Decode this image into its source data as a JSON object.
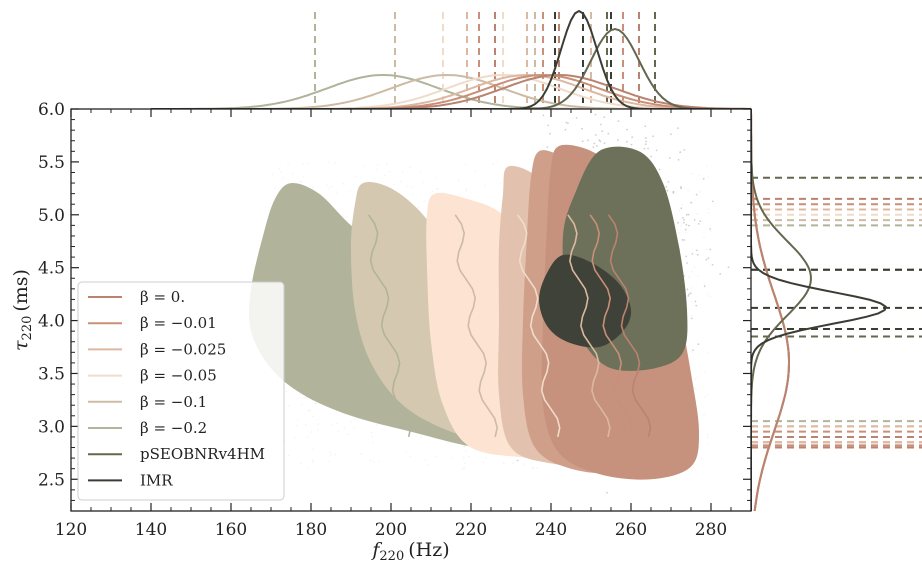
{
  "chart_data": {
    "type": "scatter",
    "title": "",
    "xlabel": {
      "base": "f",
      "sub": "220",
      "unit": "(Hz)"
    },
    "ylabel": {
      "base": "τ",
      "sub": "220",
      "unit": "(ms)"
    },
    "xlim": [
      120,
      290
    ],
    "ylim": [
      2.2,
      6.0
    ],
    "xticks": [
      "120",
      "140",
      "160",
      "180",
      "200",
      "220",
      "240",
      "260",
      "280"
    ],
    "yticks": [
      "2.5",
      "3.0",
      "3.5",
      "4.0",
      "4.5",
      "5.0",
      "5.5",
      "6.0"
    ],
    "legend_position": "lower-left",
    "series": [
      {
        "name": "β = −0.2",
        "color": "#b1b39a",
        "fill": "#b1b39a",
        "region": [
          [
            175,
            5.3
          ],
          [
            182,
            5.2
          ],
          [
            190,
            4.9
          ],
          [
            200,
            4.6
          ],
          [
            210,
            4.2
          ],
          [
            220,
            3.8
          ],
          [
            230,
            3.4
          ],
          [
            235,
            3.1
          ],
          [
            232,
            2.85
          ],
          [
            222,
            2.8
          ],
          [
            205,
            2.95
          ],
          [
            190,
            3.1
          ],
          [
            178,
            3.3
          ],
          [
            170,
            3.55
          ],
          [
            165,
            3.9
          ],
          [
            165,
            4.3
          ],
          [
            168,
            4.8
          ],
          [
            171,
            5.15
          ]
        ],
        "x_marginal_peak": 198,
        "x_quantiles": [
          181,
          201,
          219
        ],
        "y_quantiles": [
          2.85,
          3.05,
          4.9
        ]
      },
      {
        "name": "β = −0.1",
        "color": "#cbbca3",
        "fill": "#d5c8b1",
        "region": [
          [
            193,
            5.3
          ],
          [
            200,
            5.25
          ],
          [
            208,
            5.0
          ],
          [
            215,
            4.6
          ],
          [
            222,
            4.1
          ],
          [
            230,
            3.7
          ],
          [
            238,
            3.4
          ],
          [
            246,
            3.15
          ],
          [
            252,
            2.85
          ],
          [
            248,
            2.7
          ],
          [
            230,
            2.8
          ],
          [
            215,
            2.95
          ],
          [
            203,
            3.2
          ],
          [
            195,
            3.6
          ],
          [
            191,
            4.1
          ],
          [
            190,
            4.7
          ],
          [
            191,
            5.1
          ]
        ],
        "x_marginal_peak": 214,
        "x_quantiles": [
          201,
          219,
          236
        ],
        "y_quantiles": [
          2.85,
          3.0,
          4.95
        ]
      },
      {
        "name": "β = −0.05",
        "color": "#f0dccb",
        "fill": "#fde3d2",
        "region": [
          [
            211,
            5.2
          ],
          [
            219,
            5.15
          ],
          [
            228,
            5.0
          ],
          [
            236,
            4.6
          ],
          [
            243,
            4.3
          ],
          [
            250,
            3.9
          ],
          [
            257,
            3.5
          ],
          [
            263,
            3.1
          ],
          [
            262,
            2.75
          ],
          [
            250,
            2.65
          ],
          [
            235,
            2.7
          ],
          [
            220,
            2.8
          ],
          [
            213,
            3.2
          ],
          [
            210,
            3.8
          ],
          [
            209,
            4.5
          ],
          [
            209,
            5.0
          ]
        ],
        "x_marginal_peak": 228,
        "x_quantiles": [
          213,
          228,
          242
        ],
        "y_quantiles": [
          2.85,
          3.0,
          5.0
        ]
      },
      {
        "name": "β = −0.025",
        "color": "#ddb8a1",
        "fill": "#e2c2ae",
        "region": [
          [
            229,
            5.45
          ],
          [
            235,
            5.4
          ],
          [
            240,
            5.2
          ],
          [
            245,
            4.9
          ],
          [
            251,
            4.5
          ],
          [
            257,
            4.1
          ],
          [
            263,
            3.6
          ],
          [
            268,
            3.1
          ],
          [
            267,
            2.75
          ],
          [
            255,
            2.62
          ],
          [
            240,
            2.65
          ],
          [
            230,
            2.8
          ],
          [
            227,
            3.3
          ],
          [
            227,
            4.0
          ],
          [
            227,
            4.7
          ],
          [
            228,
            5.2
          ]
        ],
        "x_marginal_peak": 234,
        "x_quantiles": [
          219,
          234,
          250
        ],
        "y_quantiles": [
          2.85,
          3.0,
          5.05
        ]
      },
      {
        "name": "β = −0.01",
        "color": "#c98f78",
        "fill": "#cf9f89",
        "region": [
          [
            237,
            5.6
          ],
          [
            243,
            5.55
          ],
          [
            250,
            5.4
          ],
          [
            257,
            5.1
          ],
          [
            263,
            4.6
          ],
          [
            267,
            4.0
          ],
          [
            271,
            3.4
          ],
          [
            273,
            2.9
          ],
          [
            270,
            2.62
          ],
          [
            258,
            2.55
          ],
          [
            245,
            2.6
          ],
          [
            236,
            2.8
          ],
          [
            233,
            3.3
          ],
          [
            233,
            4.0
          ],
          [
            234,
            4.8
          ],
          [
            235,
            5.35
          ]
        ],
        "x_marginal_peak": 238,
        "x_quantiles": [
          222,
          238,
          258
        ],
        "y_quantiles": [
          2.82,
          2.95,
          5.1
        ]
      },
      {
        "name": "β = 0.",
        "color": "#b98370",
        "fill": "#c6927d",
        "region": [
          [
            242,
            5.65
          ],
          [
            249,
            5.62
          ],
          [
            256,
            5.45
          ],
          [
            262,
            5.2
          ],
          [
            268,
            4.7
          ],
          [
            272,
            4.1
          ],
          [
            275,
            3.5
          ],
          [
            277,
            2.95
          ],
          [
            275,
            2.62
          ],
          [
            265,
            2.5
          ],
          [
            252,
            2.55
          ],
          [
            242,
            2.75
          ],
          [
            238,
            3.2
          ],
          [
            238,
            4.0
          ],
          [
            239,
            4.9
          ],
          [
            240,
            5.45
          ]
        ],
        "x_marginal_peak": 242,
        "x_quantiles": [
          226,
          242,
          262
        ],
        "y_quantiles": [
          2.8,
          2.9,
          5.15
        ]
      },
      {
        "name": "pSEOBNRv4HM",
        "color": "#65674f",
        "fill": "#6d7159",
        "region": [
          [
            252,
            5.6
          ],
          [
            262,
            5.6
          ],
          [
            268,
            5.3
          ],
          [
            272,
            4.7
          ],
          [
            274,
            4.1
          ],
          [
            273,
            3.7
          ],
          [
            266,
            3.55
          ],
          [
            255,
            3.55
          ],
          [
            248,
            3.8
          ],
          [
            244,
            4.2
          ],
          [
            243,
            4.8
          ],
          [
            246,
            5.2
          ]
        ],
        "x_marginal_peak": 256,
        "x_quantiles": [
          241,
          254,
          266
        ],
        "y_quantiles": [
          3.85,
          4.48,
          5.35
        ]
      },
      {
        "name": "IMR",
        "color": "#3a3d34",
        "fill": "#3f4238",
        "region": [
          [
            243,
            4.62
          ],
          [
            250,
            4.55
          ],
          [
            257,
            4.35
          ],
          [
            260,
            4.1
          ],
          [
            258,
            3.9
          ],
          [
            252,
            3.75
          ],
          [
            244,
            3.8
          ],
          [
            239,
            3.95
          ],
          [
            237,
            4.2
          ],
          [
            239,
            4.45
          ]
        ],
        "x_marginal_peak": 247,
        "x_quantiles": [
          241,
          248,
          255
        ],
        "y_quantiles": [
          3.92,
          4.12,
          4.48
        ]
      }
    ]
  }
}
